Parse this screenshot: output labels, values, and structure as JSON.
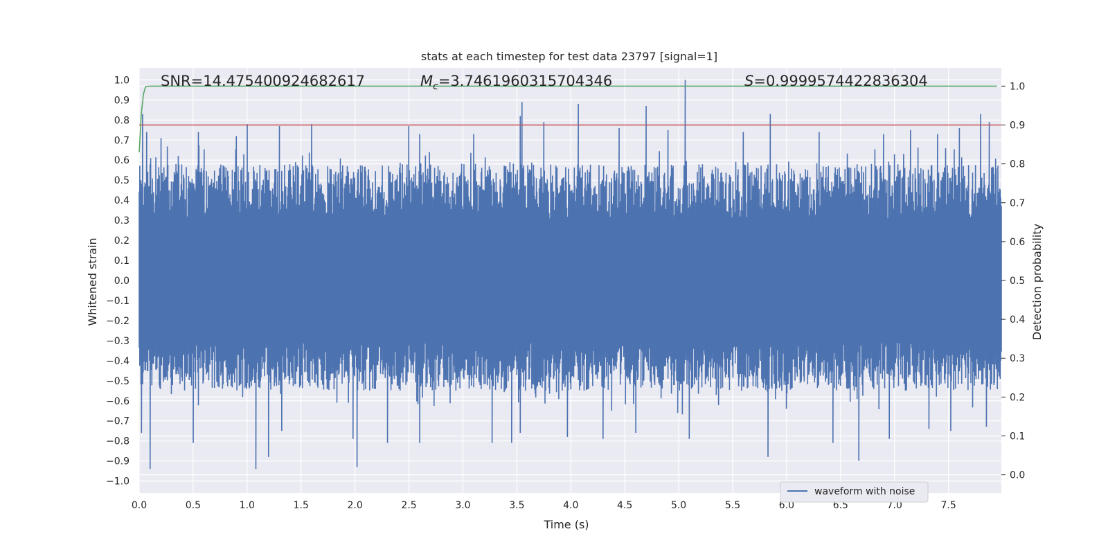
{
  "chart_data": {
    "type": "line",
    "title": "stats at each timestep for test data 23797 [signal=1]",
    "xlabel": "Time (s)",
    "ylabel": "Whitened strain",
    "y2label": "Detection probability",
    "xlim": [
      0.0,
      7.99
    ],
    "ylim": [
      -1.06,
      1.06
    ],
    "y2lim": [
      -0.047,
      1.047
    ],
    "x_ticks": [
      "0.0",
      "0.5",
      "1.0",
      "1.5",
      "2.0",
      "2.5",
      "3.0",
      "3.5",
      "4.0",
      "4.5",
      "5.0",
      "5.5",
      "6.0",
      "6.5",
      "7.0",
      "7.5"
    ],
    "y_ticks": [
      "1.0",
      "0.9",
      "0.8",
      "0.7",
      "0.6",
      "0.5",
      "0.4",
      "0.3",
      "0.2",
      "0.1",
      "0.0",
      "−0.1",
      "−0.2",
      "−0.3",
      "−0.4",
      "−0.5",
      "−0.6",
      "−0.7",
      "−0.8",
      "−0.9",
      "−1.0"
    ],
    "y2_ticks": [
      "1.0",
      "0.9",
      "0.8",
      "0.7",
      "0.6",
      "0.5",
      "0.4",
      "0.3",
      "0.2",
      "0.1",
      "0.0"
    ],
    "grid": true,
    "legend_position": "lower-right",
    "annotations": {
      "snr_text": "SNR=14.475400924682617",
      "mc_prefix": "M",
      "mc_sub": "c",
      "mc_value": "=3.7461960315704346",
      "s_prefix": "S",
      "s_value": "=0.9999574422836304"
    },
    "series": [
      {
        "name": "waveform with noise",
        "axis": "left",
        "color": "#4C72B0",
        "description": "whitened noisy strain, dense oscillation roughly within ±0.5 with spikes up to 1.0 near t=5.05 s",
        "spikes": [
          [
            0.03,
            0.83
          ],
          [
            0.07,
            0.74
          ],
          [
            0.2,
            0.71
          ],
          [
            0.55,
            0.74
          ],
          [
            0.9,
            0.72
          ],
          [
            1.0,
            0.78
          ],
          [
            1.3,
            0.77
          ],
          [
            1.6,
            0.78
          ],
          [
            2.5,
            0.77
          ],
          [
            2.6,
            0.73
          ],
          [
            3.1,
            0.73
          ],
          [
            3.53,
            0.82
          ],
          [
            3.55,
            0.89
          ],
          [
            3.75,
            0.79
          ],
          [
            4.07,
            0.88
          ],
          [
            4.45,
            0.76
          ],
          [
            4.7,
            0.87
          ],
          [
            4.9,
            0.75
          ],
          [
            5.06,
            1.0
          ],
          [
            5.6,
            0.74
          ],
          [
            5.85,
            0.83
          ],
          [
            6.3,
            0.74
          ],
          [
            6.9,
            0.73
          ],
          [
            7.15,
            0.75
          ],
          [
            7.4,
            0.73
          ],
          [
            7.6,
            0.76
          ],
          [
            7.8,
            0.83
          ],
          [
            7.88,
            0.79
          ],
          [
            0.02,
            -0.76
          ],
          [
            0.1,
            -0.94
          ],
          [
            0.5,
            -0.81
          ],
          [
            1.08,
            -0.94
          ],
          [
            1.2,
            -0.88
          ],
          [
            1.32,
            -0.75
          ],
          [
            2.02,
            -0.93
          ],
          [
            1.98,
            -0.79
          ],
          [
            2.3,
            -0.81
          ],
          [
            2.6,
            -0.81
          ],
          [
            3.27,
            -0.81
          ],
          [
            3.45,
            -0.81
          ],
          [
            3.53,
            -0.76
          ],
          [
            3.97,
            -0.78
          ],
          [
            4.3,
            -0.79
          ],
          [
            4.6,
            -0.76
          ],
          [
            5.1,
            -0.79
          ],
          [
            5.83,
            -0.88
          ],
          [
            6.43,
            -0.81
          ],
          [
            6.67,
            -0.9
          ],
          [
            6.95,
            -0.79
          ],
          [
            7.32,
            -0.74
          ],
          [
            7.52,
            -0.75
          ],
          [
            7.85,
            -0.73
          ]
        ]
      },
      {
        "name": "",
        "axis": "right",
        "color": "#55A868",
        "x": [
          0.0,
          0.02,
          0.04,
          0.06,
          0.1,
          0.2,
          7.95
        ],
        "y": [
          0.83,
          0.93,
          0.98,
          0.999,
          1.0,
          1.0,
          1.0
        ]
      },
      {
        "name": "",
        "axis": "right",
        "color": "#C44E52",
        "x": [
          0.0,
          7.99
        ],
        "y": [
          0.9,
          0.9
        ]
      }
    ]
  }
}
